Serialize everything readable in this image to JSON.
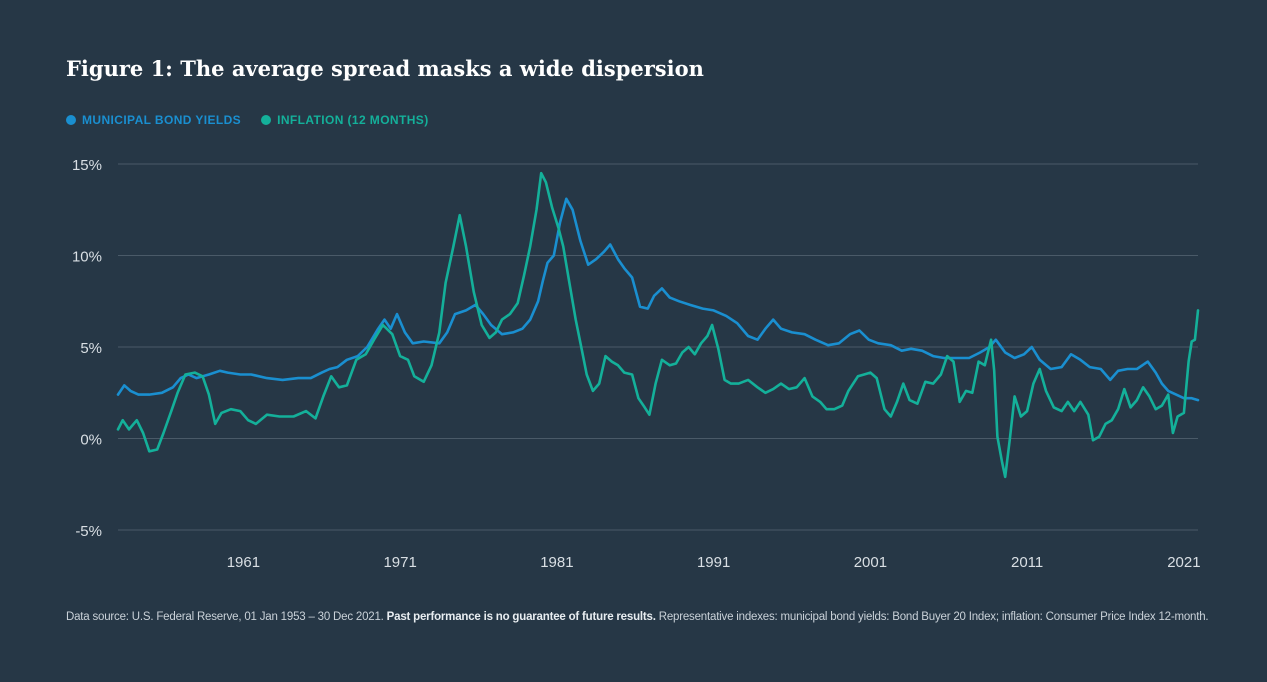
{
  "chart_data": {
    "type": "line",
    "title": "Figure 1: The average spread masks a wide dispersion",
    "xlabel": "",
    "ylabel": "",
    "x_ticks": [
      "1961",
      "1971",
      "1981",
      "1991",
      "2001",
      "2011",
      "2021"
    ],
    "x_tick_values": [
      1961,
      1971,
      1981,
      1991,
      2001,
      2011,
      2021
    ],
    "xlim": [
      1953,
      2021.9
    ],
    "y_ticks": [
      "15%",
      "10%",
      "5%",
      "0%",
      "-5%"
    ],
    "y_tick_values": [
      15,
      10,
      5,
      0,
      -5
    ],
    "ylim": [
      -5,
      15
    ],
    "grid": true,
    "legend_position": "top-left",
    "series": [
      {
        "name": "MUNICIPAL BOND YIELDS",
        "color": "#1a8fd0",
        "points": [
          [
            1953.0,
            2.4
          ],
          [
            1953.4,
            2.9
          ],
          [
            1953.8,
            2.6
          ],
          [
            1954.3,
            2.4
          ],
          [
            1955.0,
            2.4
          ],
          [
            1955.8,
            2.5
          ],
          [
            1956.5,
            2.8
          ],
          [
            1957.0,
            3.3
          ],
          [
            1957.5,
            3.5
          ],
          [
            1958.0,
            3.3
          ],
          [
            1958.8,
            3.5
          ],
          [
            1959.5,
            3.7
          ],
          [
            1960.0,
            3.6
          ],
          [
            1960.8,
            3.5
          ],
          [
            1961.5,
            3.5
          ],
          [
            1962.5,
            3.3
          ],
          [
            1963.5,
            3.2
          ],
          [
            1964.5,
            3.3
          ],
          [
            1965.3,
            3.3
          ],
          [
            1966.0,
            3.6
          ],
          [
            1966.5,
            3.8
          ],
          [
            1967.0,
            3.9
          ],
          [
            1967.6,
            4.3
          ],
          [
            1968.3,
            4.5
          ],
          [
            1968.9,
            5.0
          ],
          [
            1969.6,
            6.0
          ],
          [
            1970.0,
            6.5
          ],
          [
            1970.4,
            6.0
          ],
          [
            1970.8,
            6.8
          ],
          [
            1971.3,
            5.8
          ],
          [
            1971.8,
            5.2
          ],
          [
            1972.5,
            5.3
          ],
          [
            1973.5,
            5.2
          ],
          [
            1974.0,
            5.8
          ],
          [
            1974.5,
            6.8
          ],
          [
            1975.2,
            7.0
          ],
          [
            1975.8,
            7.3
          ],
          [
            1976.3,
            6.8
          ],
          [
            1976.8,
            6.2
          ],
          [
            1977.5,
            5.7
          ],
          [
            1978.2,
            5.8
          ],
          [
            1978.8,
            6.0
          ],
          [
            1979.3,
            6.5
          ],
          [
            1979.8,
            7.5
          ],
          [
            1980.1,
            8.6
          ],
          [
            1980.4,
            9.6
          ],
          [
            1980.8,
            10.0
          ],
          [
            1981.2,
            11.8
          ],
          [
            1981.6,
            13.1
          ],
          [
            1982.0,
            12.5
          ],
          [
            1982.5,
            10.8
          ],
          [
            1983.0,
            9.5
          ],
          [
            1983.5,
            9.8
          ],
          [
            1984.0,
            10.2
          ],
          [
            1984.4,
            10.6
          ],
          [
            1984.9,
            9.8
          ],
          [
            1985.3,
            9.3
          ],
          [
            1985.8,
            8.8
          ],
          [
            1986.3,
            7.2
          ],
          [
            1986.8,
            7.1
          ],
          [
            1987.2,
            7.8
          ],
          [
            1987.7,
            8.2
          ],
          [
            1988.2,
            7.7
          ],
          [
            1988.8,
            7.5
          ],
          [
            1989.5,
            7.3
          ],
          [
            1990.3,
            7.1
          ],
          [
            1991.0,
            7.0
          ],
          [
            1991.8,
            6.7
          ],
          [
            1992.5,
            6.3
          ],
          [
            1993.2,
            5.6
          ],
          [
            1993.8,
            5.4
          ],
          [
            1994.3,
            6.0
          ],
          [
            1994.8,
            6.5
          ],
          [
            1995.3,
            6.0
          ],
          [
            1996.0,
            5.8
          ],
          [
            1996.8,
            5.7
          ],
          [
            1997.5,
            5.4
          ],
          [
            1998.3,
            5.1
          ],
          [
            1999.0,
            5.2
          ],
          [
            1999.7,
            5.7
          ],
          [
            2000.3,
            5.9
          ],
          [
            2000.9,
            5.4
          ],
          [
            2001.5,
            5.2
          ],
          [
            2002.3,
            5.1
          ],
          [
            2003.0,
            4.8
          ],
          [
            2003.6,
            4.9
          ],
          [
            2004.3,
            4.8
          ],
          [
            2005.0,
            4.5
          ],
          [
            2005.7,
            4.4
          ],
          [
            2006.5,
            4.4
          ],
          [
            2007.3,
            4.4
          ],
          [
            2008.0,
            4.7
          ],
          [
            2008.6,
            5.0
          ],
          [
            2009.0,
            5.4
          ],
          [
            2009.6,
            4.7
          ],
          [
            2010.2,
            4.4
          ],
          [
            2010.8,
            4.6
          ],
          [
            2011.3,
            5.0
          ],
          [
            2011.8,
            4.3
          ],
          [
            2012.5,
            3.8
          ],
          [
            2013.2,
            3.9
          ],
          [
            2013.8,
            4.6
          ],
          [
            2014.4,
            4.3
          ],
          [
            2015.0,
            3.9
          ],
          [
            2015.7,
            3.8
          ],
          [
            2016.3,
            3.2
          ],
          [
            2016.8,
            3.7
          ],
          [
            2017.4,
            3.8
          ],
          [
            2018.0,
            3.8
          ],
          [
            2018.7,
            4.2
          ],
          [
            2019.2,
            3.6
          ],
          [
            2019.6,
            3.0
          ],
          [
            2020.0,
            2.6
          ],
          [
            2020.5,
            2.4
          ],
          [
            2021.0,
            2.2
          ],
          [
            2021.5,
            2.2
          ],
          [
            2021.9,
            2.1
          ]
        ]
      },
      {
        "name": "INFLATION (12 MONTHS)",
        "color": "#14b09a",
        "points": [
          [
            1953.0,
            0.5
          ],
          [
            1953.3,
            1.0
          ],
          [
            1953.7,
            0.5
          ],
          [
            1954.2,
            1.0
          ],
          [
            1954.6,
            0.3
          ],
          [
            1955.0,
            -0.7
          ],
          [
            1955.5,
            -0.6
          ],
          [
            1955.9,
            0.3
          ],
          [
            1956.4,
            1.5
          ],
          [
            1956.8,
            2.5
          ],
          [
            1957.3,
            3.5
          ],
          [
            1957.9,
            3.6
          ],
          [
            1958.4,
            3.4
          ],
          [
            1958.8,
            2.4
          ],
          [
            1959.2,
            0.8
          ],
          [
            1959.6,
            1.4
          ],
          [
            1960.2,
            1.6
          ],
          [
            1960.8,
            1.5
          ],
          [
            1961.3,
            1.0
          ],
          [
            1961.8,
            0.8
          ],
          [
            1962.5,
            1.3
          ],
          [
            1963.3,
            1.2
          ],
          [
            1964.2,
            1.2
          ],
          [
            1965.0,
            1.5
          ],
          [
            1965.6,
            1.1
          ],
          [
            1966.1,
            2.3
          ],
          [
            1966.6,
            3.4
          ],
          [
            1967.1,
            2.8
          ],
          [
            1967.6,
            2.9
          ],
          [
            1968.2,
            4.3
          ],
          [
            1968.8,
            4.6
          ],
          [
            1969.4,
            5.5
          ],
          [
            1969.9,
            6.2
          ],
          [
            1970.5,
            5.7
          ],
          [
            1971.0,
            4.5
          ],
          [
            1971.5,
            4.3
          ],
          [
            1971.9,
            3.4
          ],
          [
            1972.5,
            3.1
          ],
          [
            1973.0,
            4.0
          ],
          [
            1973.5,
            5.8
          ],
          [
            1973.9,
            8.5
          ],
          [
            1974.4,
            10.5
          ],
          [
            1974.8,
            12.2
          ],
          [
            1975.2,
            10.5
          ],
          [
            1975.7,
            8.0
          ],
          [
            1976.2,
            6.2
          ],
          [
            1976.7,
            5.5
          ],
          [
            1977.1,
            5.8
          ],
          [
            1977.5,
            6.5
          ],
          [
            1978.0,
            6.8
          ],
          [
            1978.5,
            7.4
          ],
          [
            1978.9,
            8.9
          ],
          [
            1979.3,
            10.5
          ],
          [
            1979.7,
            12.5
          ],
          [
            1980.0,
            14.5
          ],
          [
            1980.3,
            14.0
          ],
          [
            1980.7,
            12.6
          ],
          [
            1981.1,
            11.5
          ],
          [
            1981.4,
            10.5
          ],
          [
            1981.8,
            8.5
          ],
          [
            1982.2,
            6.5
          ],
          [
            1982.6,
            4.8
          ],
          [
            1982.9,
            3.5
          ],
          [
            1983.3,
            2.6
          ],
          [
            1983.7,
            3.0
          ],
          [
            1984.1,
            4.5
          ],
          [
            1984.5,
            4.2
          ],
          [
            1984.9,
            4.0
          ],
          [
            1985.3,
            3.6
          ],
          [
            1985.8,
            3.5
          ],
          [
            1986.2,
            2.2
          ],
          [
            1986.6,
            1.7
          ],
          [
            1986.9,
            1.3
          ],
          [
            1987.3,
            3.0
          ],
          [
            1987.7,
            4.3
          ],
          [
            1988.2,
            4.0
          ],
          [
            1988.6,
            4.1
          ],
          [
            1989.0,
            4.7
          ],
          [
            1989.4,
            5.0
          ],
          [
            1989.8,
            4.6
          ],
          [
            1990.2,
            5.2
          ],
          [
            1990.6,
            5.6
          ],
          [
            1990.9,
            6.2
          ],
          [
            1991.3,
            4.9
          ],
          [
            1991.7,
            3.2
          ],
          [
            1992.1,
            3.0
          ],
          [
            1992.6,
            3.0
          ],
          [
            1993.2,
            3.2
          ],
          [
            1993.8,
            2.8
          ],
          [
            1994.3,
            2.5
          ],
          [
            1994.8,
            2.7
          ],
          [
            1995.3,
            3.0
          ],
          [
            1995.8,
            2.7
          ],
          [
            1996.3,
            2.8
          ],
          [
            1996.8,
            3.3
          ],
          [
            1997.3,
            2.3
          ],
          [
            1997.8,
            2.0
          ],
          [
            1998.2,
            1.6
          ],
          [
            1998.7,
            1.6
          ],
          [
            1999.2,
            1.8
          ],
          [
            1999.6,
            2.6
          ],
          [
            2000.2,
            3.4
          ],
          [
            2000.6,
            3.5
          ],
          [
            2001.0,
            3.6
          ],
          [
            2001.4,
            3.3
          ],
          [
            2001.9,
            1.6
          ],
          [
            2002.3,
            1.2
          ],
          [
            2002.7,
            2.0
          ],
          [
            2003.1,
            3.0
          ],
          [
            2003.5,
            2.1
          ],
          [
            2004.0,
            1.9
          ],
          [
            2004.5,
            3.1
          ],
          [
            2005.0,
            3.0
          ],
          [
            2005.5,
            3.5
          ],
          [
            2005.9,
            4.5
          ],
          [
            2006.3,
            4.2
          ],
          [
            2006.7,
            2.0
          ],
          [
            2007.1,
            2.6
          ],
          [
            2007.5,
            2.5
          ],
          [
            2007.9,
            4.2
          ],
          [
            2008.3,
            4.0
          ],
          [
            2008.7,
            5.4
          ],
          [
            2008.9,
            3.7
          ],
          [
            2009.1,
            0.1
          ],
          [
            2009.4,
            -1.3
          ],
          [
            2009.6,
            -2.1
          ],
          [
            2009.9,
            0.0
          ],
          [
            2010.2,
            2.3
          ],
          [
            2010.6,
            1.2
          ],
          [
            2011.0,
            1.5
          ],
          [
            2011.4,
            3.0
          ],
          [
            2011.8,
            3.8
          ],
          [
            2012.2,
            2.6
          ],
          [
            2012.7,
            1.7
          ],
          [
            2013.2,
            1.5
          ],
          [
            2013.6,
            2.0
          ],
          [
            2014.0,
            1.5
          ],
          [
            2014.4,
            2.0
          ],
          [
            2014.9,
            1.3
          ],
          [
            2015.2,
            -0.1
          ],
          [
            2015.6,
            0.1
          ],
          [
            2016.0,
            0.8
          ],
          [
            2016.4,
            1.0
          ],
          [
            2016.8,
            1.6
          ],
          [
            2017.2,
            2.7
          ],
          [
            2017.6,
            1.7
          ],
          [
            2018.0,
            2.1
          ],
          [
            2018.4,
            2.8
          ],
          [
            2018.8,
            2.3
          ],
          [
            2019.2,
            1.6
          ],
          [
            2019.6,
            1.8
          ],
          [
            2020.0,
            2.4
          ],
          [
            2020.3,
            0.3
          ],
          [
            2020.6,
            1.2
          ],
          [
            2021.0,
            1.4
          ],
          [
            2021.3,
            4.2
          ],
          [
            2021.5,
            5.3
          ],
          [
            2021.7,
            5.4
          ],
          [
            2021.9,
            7.0
          ]
        ]
      }
    ]
  },
  "footer": {
    "source_text": "Data source: U.S. Federal Reserve, 01 Jan 1953 – 30 Dec 2021.",
    "disclaimer_text": "Past performance is no guarantee of future results.",
    "indexes_text": "Representative indexes: municipal bond yields: Bond Buyer 20 Index; inflation: Consumer Price Index 12-month."
  },
  "colors": {
    "background": "#263746",
    "grid": "#4a5a68",
    "tick_label": "#d9dfe4",
    "title": "#ffffff"
  }
}
